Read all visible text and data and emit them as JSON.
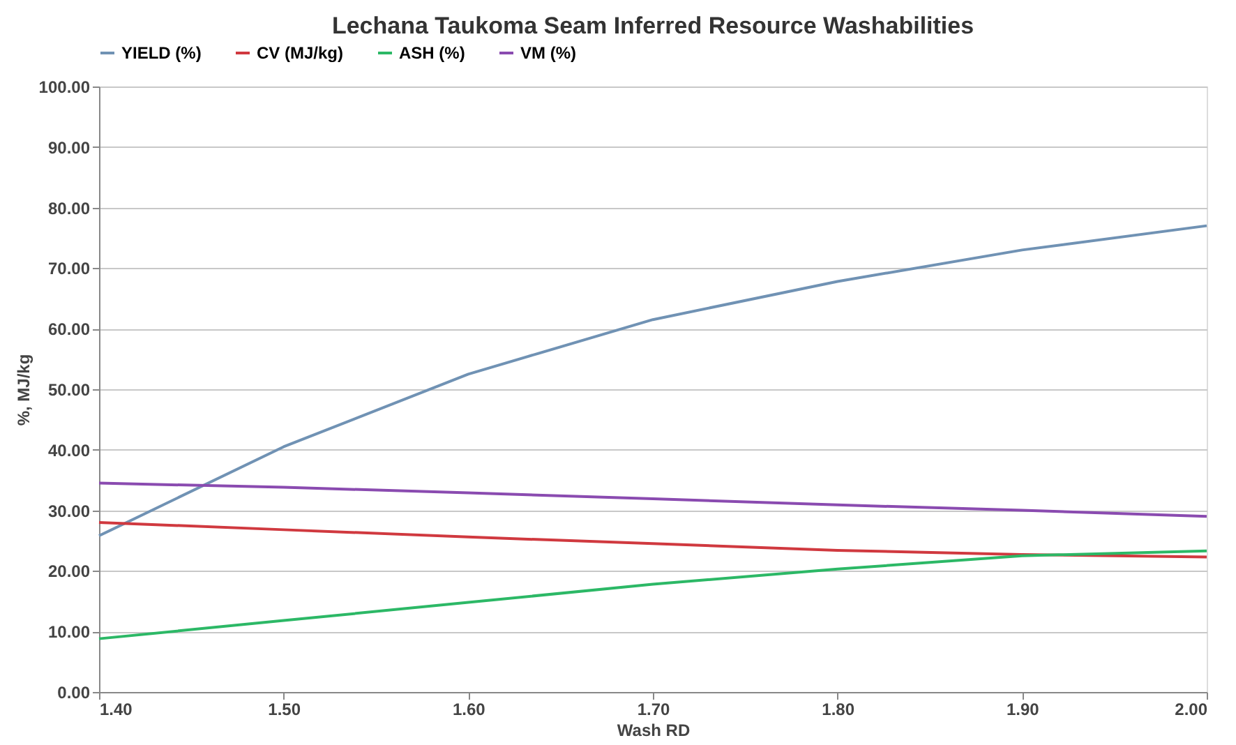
{
  "chart_data": {
    "type": "line",
    "title": "Lechana Taukoma Seam Inferred Resource Washabilities",
    "xlabel": "Wash RD",
    "ylabel": "%, MJ/kg",
    "x": [
      1.4,
      1.5,
      1.6,
      1.7,
      1.8,
      1.9,
      2.0
    ],
    "series": [
      {
        "name": "YIELD (%)",
        "color": "#7092b4",
        "values": [
          25.8,
          40.5,
          52.5,
          61.5,
          67.8,
          73.0,
          77.0
        ]
      },
      {
        "name": "CV (MJ/kg)",
        "color": "#d0393f",
        "values": [
          28.0,
          26.8,
          25.6,
          24.5,
          23.4,
          22.7,
          22.3
        ]
      },
      {
        "name": "ASH (%)",
        "color": "#2cb866",
        "values": [
          8.8,
          11.8,
          14.8,
          17.8,
          20.3,
          22.5,
          23.3
        ]
      },
      {
        "name": "VM (%)",
        "color": "#8a4bb0",
        "values": [
          34.5,
          33.8,
          32.9,
          31.9,
          30.9,
          30.0,
          29.0
        ]
      }
    ],
    "xlim": [
      1.4,
      2.0
    ],
    "xticks": [
      {
        "value": 1.4,
        "label": "1.40"
      },
      {
        "value": 1.5,
        "label": "1.50"
      },
      {
        "value": 1.6,
        "label": "1.60"
      },
      {
        "value": 1.7,
        "label": "1.70"
      },
      {
        "value": 1.8,
        "label": "1.80"
      },
      {
        "value": 1.9,
        "label": "1.90"
      },
      {
        "value": 2.0,
        "label": "2.00"
      }
    ],
    "ylim": [
      0,
      100
    ],
    "yticks": [
      {
        "value": 0,
        "label": "0.00"
      },
      {
        "value": 10,
        "label": "10.00"
      },
      {
        "value": 20,
        "label": "20.00"
      },
      {
        "value": 30,
        "label": "30.00"
      },
      {
        "value": 40,
        "label": "40.00"
      },
      {
        "value": 50,
        "label": "50.00"
      },
      {
        "value": 60,
        "label": "60.00"
      },
      {
        "value": 70,
        "label": "70.00"
      },
      {
        "value": 80,
        "label": "80.00"
      },
      {
        "value": 90,
        "label": "90.00"
      },
      {
        "value": 100,
        "label": "100.00"
      }
    ],
    "grid": "y",
    "legend": "top",
    "marker": "none",
    "line_style": "solid"
  }
}
